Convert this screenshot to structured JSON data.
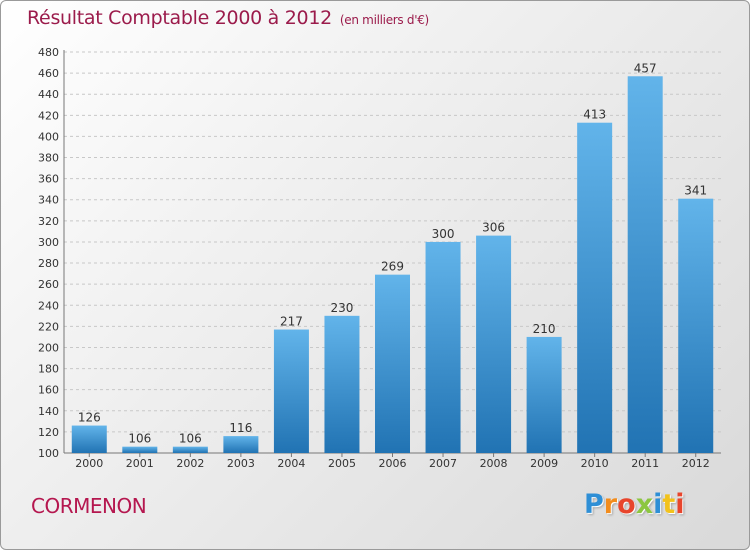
{
  "chart_data": {
    "type": "bar",
    "title": "Résultat Comptable 2000 à 2012",
    "subtitle": "(en milliers d'€)",
    "categories": [
      "2000",
      "2001",
      "2002",
      "2003",
      "2004",
      "2005",
      "2006",
      "2007",
      "2008",
      "2009",
      "2010",
      "2011",
      "2012"
    ],
    "values": [
      126,
      106,
      106,
      116,
      217,
      230,
      269,
      300,
      306,
      210,
      413,
      457,
      341
    ],
    "ylim": [
      100,
      480
    ],
    "ytick_step": 20,
    "grid": true,
    "xlabel": "",
    "ylabel": ""
  },
  "town": "CORMENON",
  "logo": {
    "letters": [
      "P",
      "r",
      "o",
      "x",
      "i",
      "t",
      "i"
    ],
    "colors": [
      "#2e8fd6",
      "#f28c1c",
      "#e8452c",
      "#8cc63f",
      "#2e8fd6",
      "#f2c21c",
      "#e8452c"
    ]
  },
  "colors": {
    "title": "#9b1b4b",
    "bar_light": "#62b4ea",
    "bar_dark": "#2173b3"
  }
}
